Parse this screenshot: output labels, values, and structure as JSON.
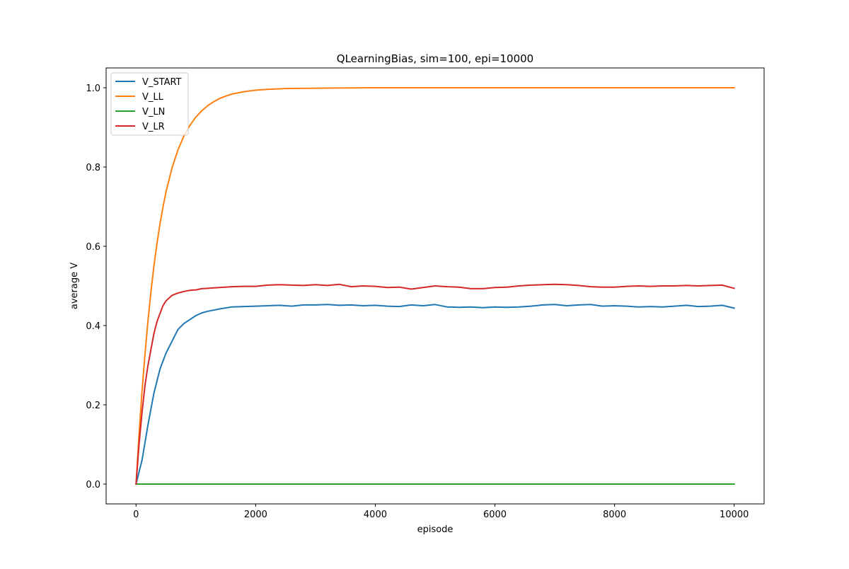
{
  "chart_data": {
    "type": "line",
    "title": "QLearningBias, sim=100, epi=10000",
    "xlabel": "episode",
    "ylabel": "average V",
    "xlim": [
      -500,
      10500
    ],
    "ylim": [
      -0.05,
      1.05
    ],
    "xticks": [
      0,
      2000,
      4000,
      6000,
      8000,
      10000
    ],
    "xtick_labels": [
      "0",
      "2000",
      "4000",
      "6000",
      "8000",
      "10000"
    ],
    "yticks": [
      0.0,
      0.2,
      0.4,
      0.6,
      0.8,
      1.0
    ],
    "ytick_labels": [
      "0.0",
      "0.2",
      "0.4",
      "0.6",
      "0.8",
      "1.0"
    ],
    "grid": false,
    "legend_position": "top-left",
    "series": [
      {
        "name": "V_START",
        "color": "#1f77b4",
        "x": [
          0,
          100,
          200,
          300,
          400,
          500,
          600,
          700,
          800,
          900,
          1000,
          1100,
          1200,
          1400,
          1600,
          1800,
          2000,
          2200,
          2400,
          2600,
          2800,
          3000,
          3200,
          3400,
          3600,
          3800,
          4000,
          4200,
          4400,
          4600,
          4800,
          5000,
          5200,
          5400,
          5600,
          5800,
          6000,
          6200,
          6400,
          6600,
          6800,
          7000,
          7200,
          7400,
          7600,
          7800,
          8000,
          8200,
          8400,
          8600,
          8800,
          9000,
          9200,
          9400,
          9600,
          9800,
          10000
        ],
        "values": [
          0.0,
          0.06,
          0.15,
          0.23,
          0.29,
          0.33,
          0.36,
          0.39,
          0.405,
          0.415,
          0.425,
          0.432,
          0.436,
          0.442,
          0.447,
          0.448,
          0.449,
          0.45,
          0.451,
          0.449,
          0.452,
          0.452,
          0.453,
          0.451,
          0.452,
          0.45,
          0.451,
          0.449,
          0.448,
          0.452,
          0.45,
          0.453,
          0.447,
          0.446,
          0.447,
          0.445,
          0.447,
          0.446,
          0.447,
          0.449,
          0.452,
          0.453,
          0.45,
          0.452,
          0.453,
          0.449,
          0.45,
          0.449,
          0.447,
          0.448,
          0.447,
          0.449,
          0.451,
          0.448,
          0.449,
          0.451,
          0.444
        ]
      },
      {
        "name": "V_LL",
        "color": "#ff7f0e",
        "x": [
          0,
          50,
          100,
          150,
          200,
          250,
          300,
          350,
          400,
          450,
          500,
          600,
          700,
          800,
          900,
          1000,
          1100,
          1200,
          1300,
          1400,
          1500,
          1600,
          1800,
          2000,
          2200,
          2500,
          3000,
          4000,
          5000,
          6000,
          7000,
          8000,
          9000,
          10000
        ],
        "values": [
          0.0,
          0.124,
          0.233,
          0.329,
          0.413,
          0.486,
          0.551,
          0.607,
          0.656,
          0.698,
          0.736,
          0.797,
          0.843,
          0.878,
          0.905,
          0.926,
          0.942,
          0.955,
          0.965,
          0.973,
          0.979,
          0.984,
          0.99,
          0.994,
          0.996,
          0.998,
          0.999,
          1.0,
          1.0,
          1.0,
          1.0,
          1.0,
          1.0,
          1.0
        ]
      },
      {
        "name": "V_LN",
        "color": "#2ca02c",
        "x": [
          0,
          10000
        ],
        "values": [
          0.0,
          0.0
        ]
      },
      {
        "name": "V_LR",
        "color": "#d62728",
        "x": [
          0,
          50,
          100,
          150,
          200,
          250,
          300,
          350,
          400,
          450,
          500,
          600,
          700,
          800,
          900,
          1000,
          1100,
          1200,
          1300,
          1400,
          1600,
          1800,
          2000,
          2200,
          2400,
          2600,
          2800,
          3000,
          3200,
          3400,
          3600,
          3800,
          4000,
          4200,
          4400,
          4600,
          4800,
          5000,
          5200,
          5400,
          5600,
          5800,
          6000,
          6200,
          6400,
          6600,
          6800,
          7000,
          7200,
          7400,
          7600,
          7800,
          8000,
          8200,
          8400,
          8600,
          8800,
          9000,
          9200,
          9400,
          9600,
          9800,
          10000
        ],
        "values": [
          0.0,
          0.1,
          0.18,
          0.25,
          0.3,
          0.34,
          0.38,
          0.41,
          0.43,
          0.45,
          0.462,
          0.476,
          0.482,
          0.486,
          0.489,
          0.49,
          0.493,
          0.494,
          0.495,
          0.496,
          0.498,
          0.499,
          0.499,
          0.502,
          0.503,
          0.502,
          0.501,
          0.503,
          0.501,
          0.504,
          0.498,
          0.5,
          0.499,
          0.496,
          0.497,
          0.492,
          0.496,
          0.5,
          0.498,
          0.497,
          0.493,
          0.493,
          0.496,
          0.497,
          0.5,
          0.502,
          0.503,
          0.504,
          0.503,
          0.501,
          0.498,
          0.497,
          0.497,
          0.499,
          0.5,
          0.499,
          0.5,
          0.5,
          0.501,
          0.5,
          0.501,
          0.502,
          0.494
        ]
      }
    ]
  }
}
